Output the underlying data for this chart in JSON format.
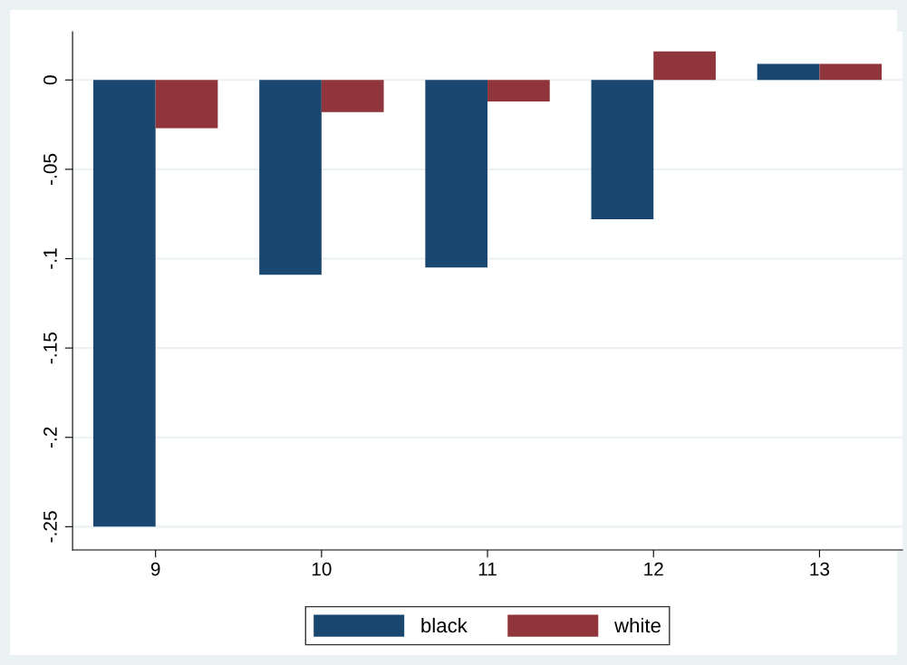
{
  "chart_data": {
    "type": "bar",
    "categories": [
      "9",
      "10",
      "11",
      "12",
      "13"
    ],
    "series": [
      {
        "name": "black",
        "color": "#1a476f",
        "values": [
          -0.25,
          -0.109,
          -0.105,
          -0.078,
          0.009
        ]
      },
      {
        "name": "white",
        "color": "#90353b",
        "values": [
          -0.027,
          -0.018,
          -0.012,
          0.016,
          0.009
        ]
      }
    ],
    "ylim": [
      -0.263,
      0.027
    ],
    "yticks": [
      {
        "value": 0,
        "label": "0"
      },
      {
        "value": -0.05,
        "label": "-.05"
      },
      {
        "value": -0.1,
        "label": "-.1"
      },
      {
        "value": -0.15,
        "label": "-.15"
      },
      {
        "value": -0.2,
        "label": "-.2"
      },
      {
        "value": -0.25,
        "label": "-.25"
      }
    ],
    "grid": "y",
    "legend": "bottom"
  }
}
